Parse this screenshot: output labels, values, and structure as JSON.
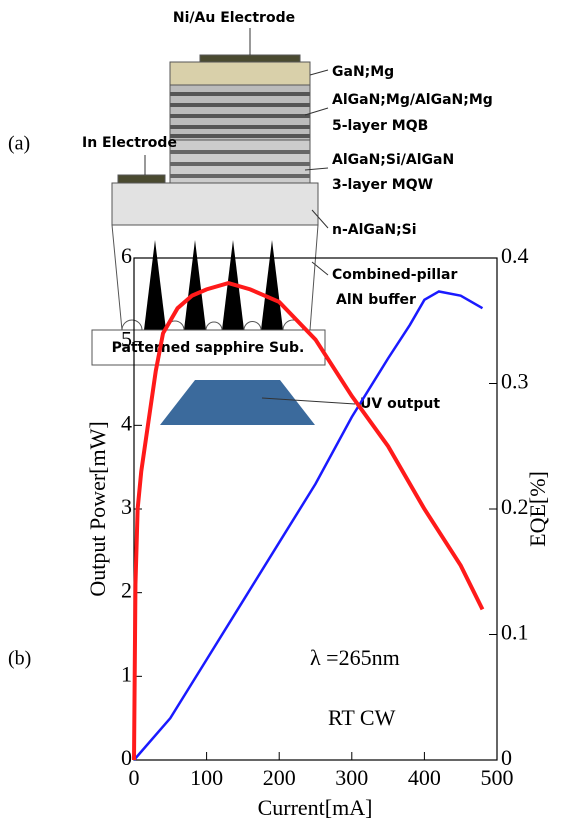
{
  "panel_labels": [
    "(a)",
    "(b)"
  ],
  "diagram": {
    "top_electrode": "Ni/Au Electrode",
    "side_electrode": "In Electrode",
    "substrate": "Patterned sapphire Sub.",
    "layers": [
      "GaN;Mg",
      "AlGaN;Mg/AlGaN;Mg",
      "5-layer MQB",
      "AlGaN;Si/AlGaN",
      "3-layer MQW",
      "n-AlGaN;Si",
      "Combined-pillar",
      "AlN buffer"
    ],
    "output": "UV output"
  },
  "chart_data": {
    "type": "line",
    "xlabel": "Current[mA]",
    "ylabel": "Output Power[mW]",
    "y2label": "EQE[%]",
    "annotations": [
      "λ =265nm",
      "RT  CW"
    ],
    "xlim": [
      0,
      500
    ],
    "xticks": [
      0,
      100,
      200,
      300,
      400,
      500
    ],
    "ylim": [
      0,
      6
    ],
    "yticks": [
      0,
      1,
      2,
      3,
      4,
      5,
      6
    ],
    "y2lim": [
      0,
      0.4
    ],
    "y2ticks": [
      0,
      0.1,
      0.2,
      0.3,
      0.4
    ],
    "series": [
      {
        "color": "#1a1aff",
        "x": [
          0,
          50,
          100,
          150,
          200,
          250,
          300,
          350,
          380,
          400,
          420,
          450,
          480
        ],
        "values": [
          0,
          0.5,
          1.2,
          1.9,
          2.6,
          3.3,
          4.1,
          4.8,
          5.2,
          5.5,
          5.6,
          5.55,
          5.4
        ]
      },
      {
        "color": "#ff1a1a",
        "axis": "y2",
        "x": [
          0,
          2,
          5,
          10,
          20,
          30,
          40,
          60,
          80,
          100,
          130,
          160,
          200,
          250,
          300,
          350,
          400,
          450,
          480
        ],
        "values": [
          0,
          0.14,
          0.2,
          0.23,
          0.27,
          0.31,
          0.34,
          0.36,
          0.37,
          0.375,
          0.38,
          0.375,
          0.365,
          0.335,
          0.29,
          0.25,
          0.2,
          0.155,
          0.12
        ]
      }
    ]
  }
}
